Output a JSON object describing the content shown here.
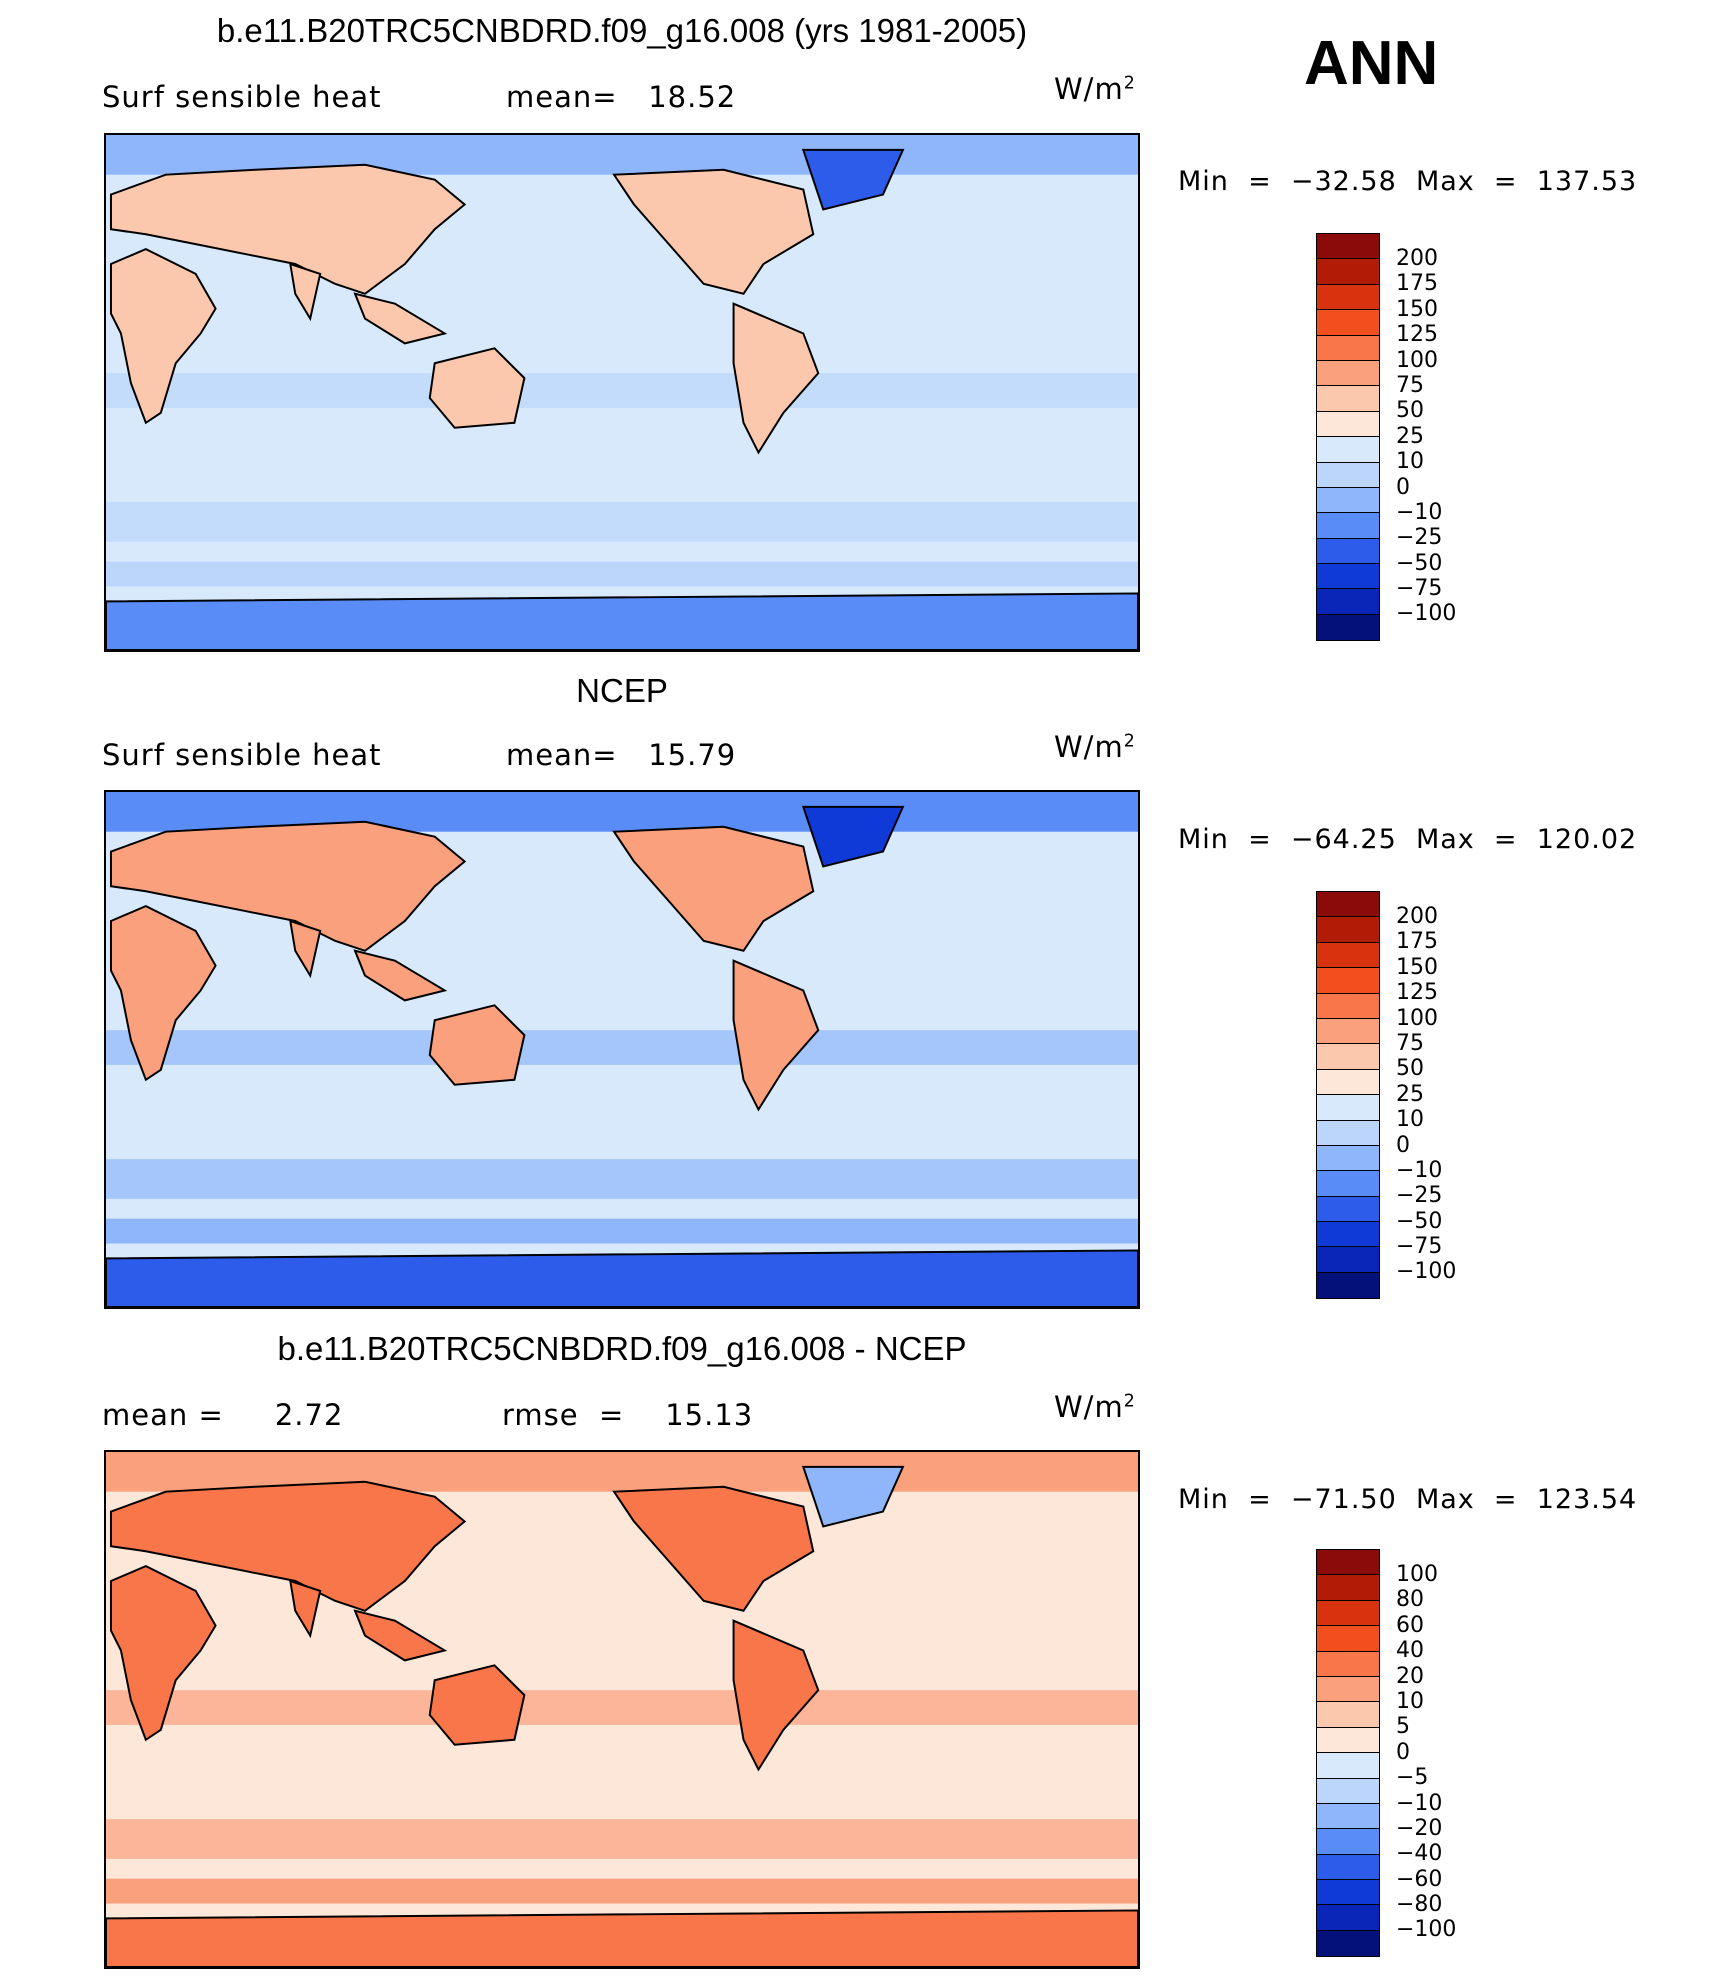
{
  "season": "ANN",
  "panels": [
    {
      "id": "model",
      "title": "b.e11.B20TRC5CNBDRD.f09_g16.008 (yrs 1981-2005)",
      "left_label": "Surf sensible heat",
      "center_label": "mean=   18.52",
      "units": "W/m",
      "units_sup": "2",
      "min_max": "Min  =  −32.58  Max  =  137.53",
      "colorbar_levels": [
        "200",
        "175",
        "150",
        "125",
        "100",
        "75",
        "50",
        "25",
        "10",
        "0",
        "−10",
        "−25",
        "−50",
        "−75",
        "−100"
      ],
      "colorbar_colors": [
        "#8b0a0a",
        "#b21c07",
        "#d8330f",
        "#f24f1f",
        "#f8764a",
        "#fba07c",
        "#fcc8ad",
        "#fde7d9",
        "#d7e9fb",
        "#bcd6fb",
        "#8fb6fb",
        "#5a8cf7",
        "#2c5ce9",
        "#0f3ad8",
        "#0926b8",
        "#05117a"
      ]
    },
    {
      "id": "obs",
      "title": "NCEP",
      "left_label": "Surf sensible heat",
      "center_label": "mean=   15.79",
      "units": "W/m",
      "units_sup": "2",
      "min_max": "Min  =  −64.25  Max  =  120.02",
      "colorbar_levels": [
        "200",
        "175",
        "150",
        "125",
        "100",
        "75",
        "50",
        "25",
        "10",
        "0",
        "−10",
        "−25",
        "−50",
        "−75",
        "−100"
      ],
      "colorbar_colors": [
        "#8b0a0a",
        "#b21c07",
        "#d8330f",
        "#f24f1f",
        "#f8764a",
        "#fba07c",
        "#fcc8ad",
        "#fde7d9",
        "#d7e9fb",
        "#bcd6fb",
        "#8fb6fb",
        "#5a8cf7",
        "#2c5ce9",
        "#0f3ad8",
        "#0926b8",
        "#05117a"
      ]
    },
    {
      "id": "diff",
      "title": "b.e11.B20TRC5CNBDRD.f09_g16.008 - NCEP",
      "left_label": "mean =     2.72",
      "center_label": "rmse  =    15.13",
      "units": "W/m",
      "units_sup": "2",
      "min_max": "Min  =  −71.50  Max  =  123.54",
      "colorbar_levels": [
        "100",
        "80",
        "60",
        "40",
        "20",
        "10",
        "5",
        "0",
        "−5",
        "−10",
        "−20",
        "−40",
        "−60",
        "−80",
        "−100"
      ],
      "colorbar_colors": [
        "#8b0a0a",
        "#b21c07",
        "#d8330f",
        "#f24f1f",
        "#f8764a",
        "#fba07c",
        "#fcc8ad",
        "#fde7d9",
        "#d7e9fb",
        "#bcd6fb",
        "#8fb6fb",
        "#5a8cf7",
        "#2c5ce9",
        "#0f3ad8",
        "#0926b8",
        "#05117a"
      ]
    }
  ]
}
